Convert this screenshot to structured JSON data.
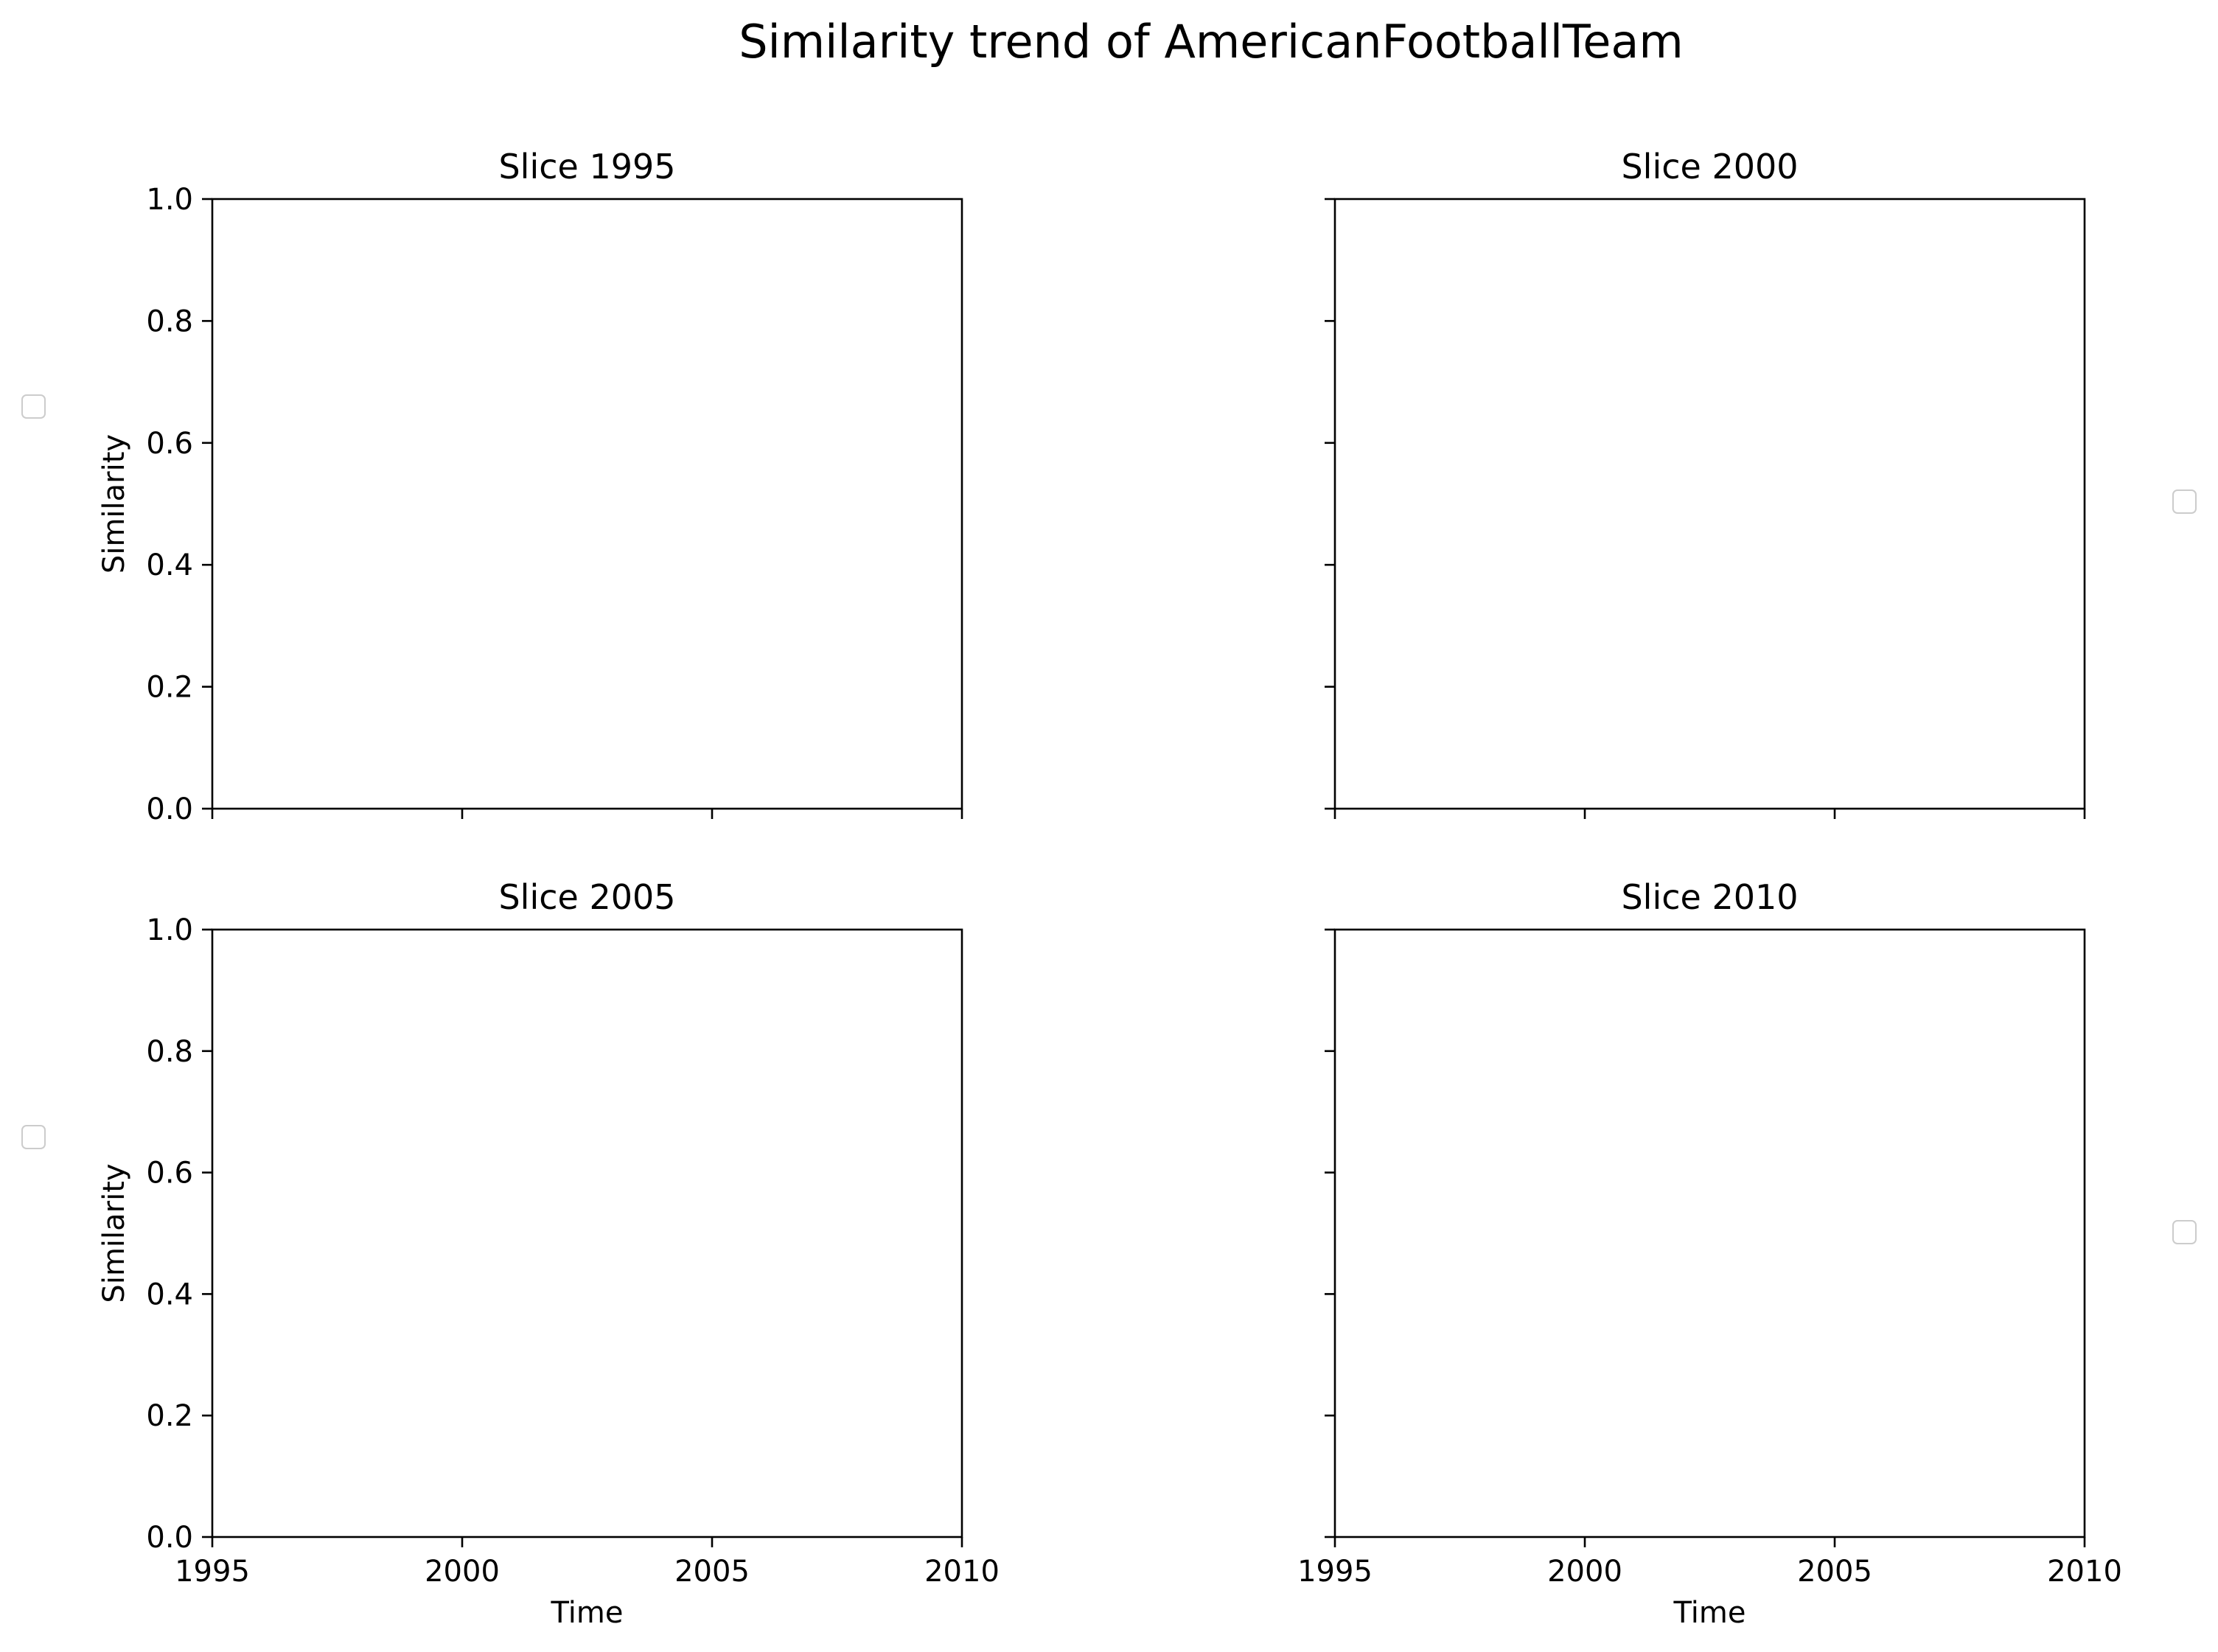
{
  "chart_data": {
    "type": "line",
    "title": "Similarity trend of AmericanFootballTeam",
    "subplots": [
      {
        "title": "Slice 1995",
        "xlabel": "",
        "ylabel": "Similarity",
        "xlim": [
          1995,
          2010
        ],
        "ylim": [
          0.0,
          1.0
        ],
        "xticks": [
          1995,
          2000,
          2005,
          2010
        ],
        "xtick_labels": [],
        "yticks": [
          0.0,
          0.2,
          0.4,
          0.6,
          0.8,
          1.0
        ],
        "ytick_labels": [
          "0.0",
          "0.2",
          "0.4",
          "0.6",
          "0.8",
          "1.0"
        ],
        "series": [],
        "legend": "center-left-outside"
      },
      {
        "title": "Slice 2000",
        "xlabel": "",
        "ylabel": "",
        "xlim": [
          1995,
          2010
        ],
        "ylim": [
          0.0,
          1.0
        ],
        "xticks": [
          1995,
          2000,
          2005,
          2010
        ],
        "xtick_labels": [],
        "yticks": [
          0.0,
          0.2,
          0.4,
          0.6,
          0.8,
          1.0
        ],
        "ytick_labels": [],
        "series": [],
        "legend": "right-outside"
      },
      {
        "title": "Slice 2005",
        "xlabel": "Time",
        "ylabel": "Similarity",
        "xlim": [
          1995,
          2010
        ],
        "ylim": [
          0.0,
          1.0
        ],
        "xticks": [
          1995,
          2000,
          2005,
          2010
        ],
        "xtick_labels": [
          "1995",
          "2000",
          "2005",
          "2010"
        ],
        "yticks": [
          0.0,
          0.2,
          0.4,
          0.6,
          0.8,
          1.0
        ],
        "ytick_labels": [
          "0.0",
          "0.2",
          "0.4",
          "0.6",
          "0.8",
          "1.0"
        ],
        "series": [],
        "legend": "center-left-outside"
      },
      {
        "title": "Slice 2010",
        "xlabel": "Time",
        "ylabel": "",
        "xlim": [
          1995,
          2010
        ],
        "ylim": [
          0.0,
          1.0
        ],
        "xticks": [
          1995,
          2000,
          2005,
          2010
        ],
        "xtick_labels": [
          "1995",
          "2000",
          "2005",
          "2010"
        ],
        "yticks": [
          0.0,
          0.2,
          0.4,
          0.6,
          0.8,
          1.0
        ],
        "ytick_labels": [],
        "series": [],
        "legend": "right-outside"
      }
    ],
    "grid": false
  }
}
